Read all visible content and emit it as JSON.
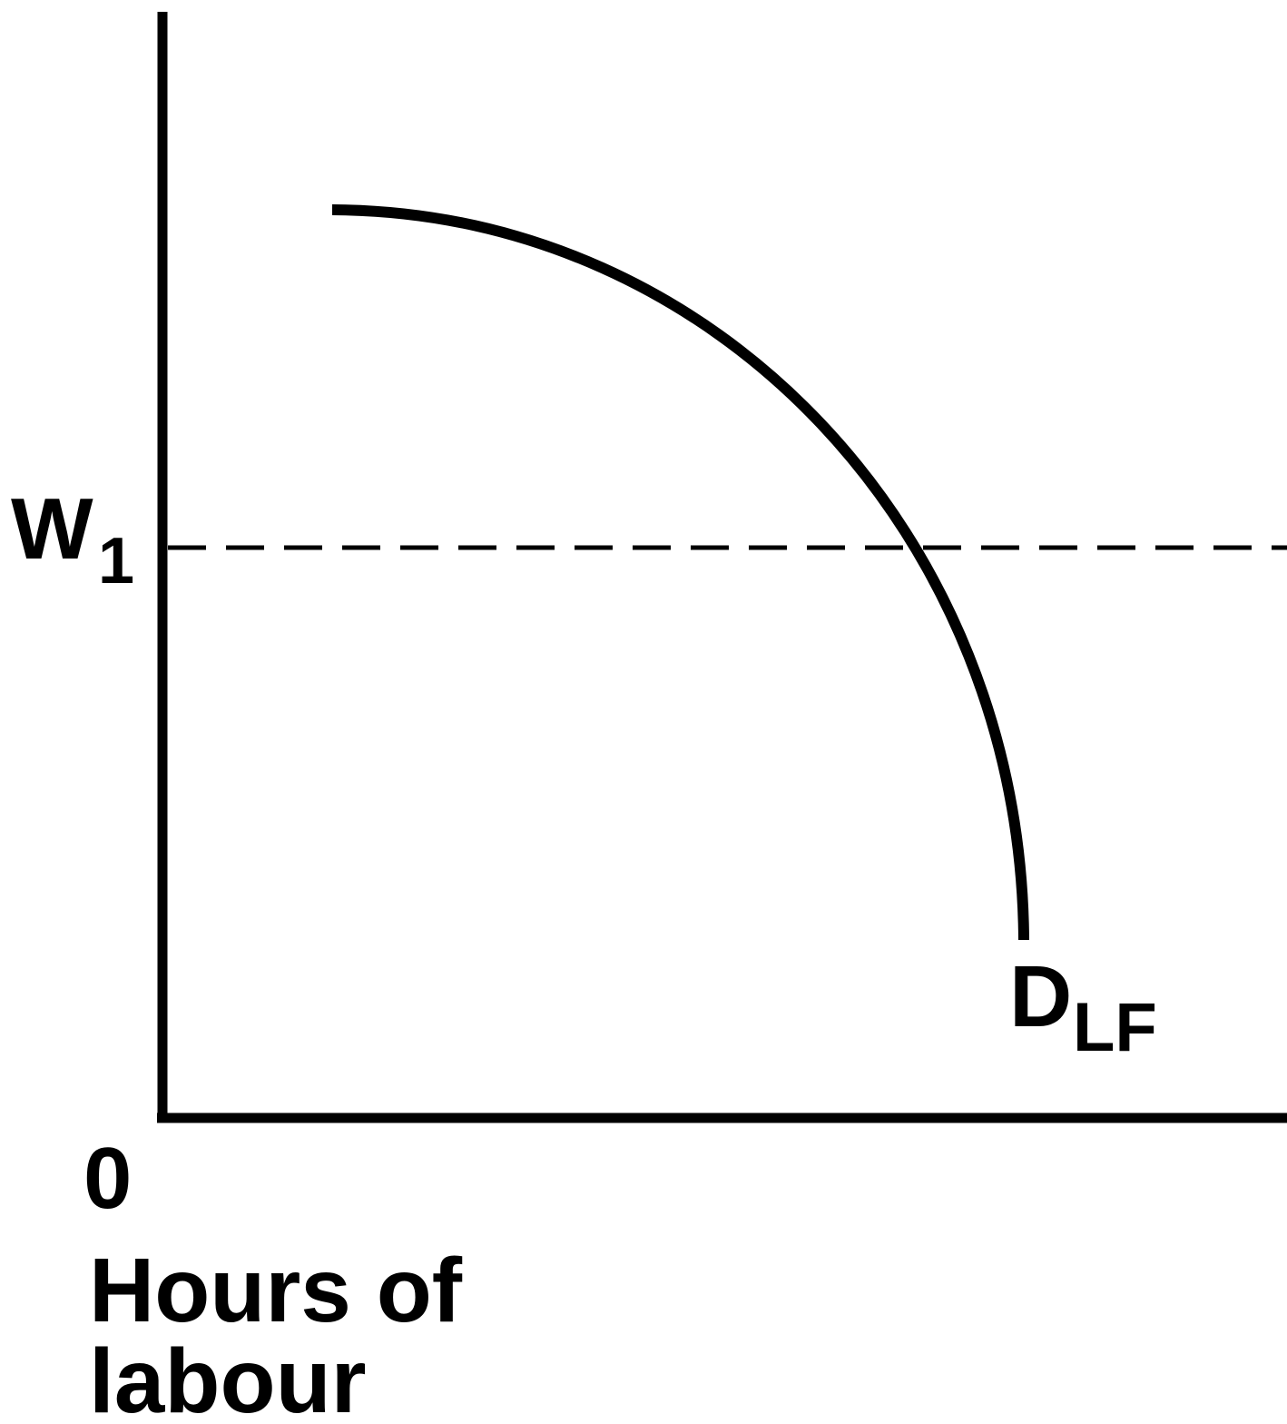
{
  "axes": {
    "y_label": {
      "main": "W",
      "sub": "1"
    },
    "origin": "0",
    "x_label": [
      "Hours of",
      "labour"
    ]
  },
  "curve": {
    "label": {
      "main": "D",
      "sub": "LF"
    }
  }
}
